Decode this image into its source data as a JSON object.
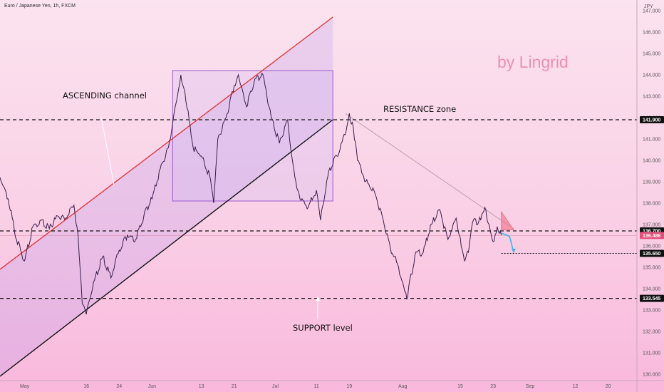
{
  "header": {
    "title": "Euro / Japanese Yen, 1h, FXCM"
  },
  "brand": {
    "text": "by Lingrid"
  },
  "annotations": {
    "ascending": "ASCENDING channel",
    "resistance": "RESISTANCE zone",
    "support": "SUPPORT level"
  },
  "chart_data": {
    "type": "line",
    "title": "Euro / Japanese Yen, 1h, FXCM",
    "ylabel": "JPY",
    "xlabel": "",
    "ylim": [
      129.7,
      147.5
    ],
    "xlim": [
      "2022-04-25",
      "2022-09-27"
    ],
    "x_ticks": [
      {
        "label": "May",
        "x": "2022-05-01"
      },
      {
        "label": "16",
        "x": "2022-05-16"
      },
      {
        "label": "24",
        "x": "2022-05-24"
      },
      {
        "label": "Jun",
        "x": "2022-06-01"
      },
      {
        "label": "13",
        "x": "2022-06-13"
      },
      {
        "label": "21",
        "x": "2022-06-21"
      },
      {
        "label": "Jul",
        "x": "2022-07-01"
      },
      {
        "label": "11",
        "x": "2022-07-11"
      },
      {
        "label": "19",
        "x": "2022-07-19"
      },
      {
        "label": "Aug",
        "x": "2022-08-01"
      },
      {
        "label": "15",
        "x": "2022-08-15"
      },
      {
        "label": "23",
        "x": "2022-08-23"
      },
      {
        "label": "Sep",
        "x": "2022-09-01"
      },
      {
        "label": "12",
        "x": "2022-09-12"
      },
      {
        "label": "20",
        "x": "2022-09-20"
      }
    ],
    "y_ticks": [
      130.0,
      131.0,
      132.0,
      133.0,
      134.0,
      135.0,
      136.0,
      137.0,
      138.0,
      139.0,
      140.0,
      141.0,
      142.0,
      143.0,
      144.0,
      145.0,
      146.0,
      147.0
    ],
    "series": [
      {
        "values": [
          [
            "2022-04-25",
            139.2
          ],
          [
            "2022-04-27",
            138.2
          ],
          [
            "2022-04-29",
            136.3
          ],
          [
            "2022-05-01",
            135.3
          ],
          [
            "2022-05-03",
            136.9
          ],
          [
            "2022-05-05",
            137.2
          ],
          [
            "2022-05-07",
            136.8
          ],
          [
            "2022-05-09",
            137.4
          ],
          [
            "2022-05-11",
            137.3
          ],
          [
            "2022-05-13",
            137.9
          ],
          [
            "2022-05-14",
            136.5
          ],
          [
            "2022-05-15",
            133.3
          ],
          [
            "2022-05-16",
            132.8
          ],
          [
            "2022-05-18",
            134.4
          ],
          [
            "2022-05-20",
            135.5
          ],
          [
            "2022-05-22",
            134.5
          ],
          [
            "2022-05-24",
            135.8
          ],
          [
            "2022-05-26",
            136.5
          ],
          [
            "2022-05-28",
            136.3
          ],
          [
            "2022-05-30",
            137.4
          ],
          [
            "2022-06-01",
            138.2
          ],
          [
            "2022-06-03",
            139.6
          ],
          [
            "2022-06-05",
            140.6
          ],
          [
            "2022-06-07",
            142.8
          ],
          [
            "2022-06-08",
            144.0
          ],
          [
            "2022-06-09",
            143.2
          ],
          [
            "2022-06-11",
            140.6
          ],
          [
            "2022-06-13",
            140.2
          ],
          [
            "2022-06-15",
            139.3
          ],
          [
            "2022-06-16",
            138.0
          ],
          [
            "2022-06-17",
            141.0
          ],
          [
            "2022-06-19",
            142.0
          ],
          [
            "2022-06-21",
            143.5
          ],
          [
            "2022-06-22",
            144.0
          ],
          [
            "2022-06-24",
            142.5
          ],
          [
            "2022-06-26",
            143.8
          ],
          [
            "2022-06-28",
            144.0
          ],
          [
            "2022-06-30",
            142.0
          ],
          [
            "2022-07-02",
            140.8
          ],
          [
            "2022-07-04",
            141.9
          ],
          [
            "2022-07-05",
            140.2
          ],
          [
            "2022-07-06",
            139.0
          ],
          [
            "2022-07-07",
            138.2
          ],
          [
            "2022-07-09",
            137.8
          ],
          [
            "2022-07-11",
            138.6
          ],
          [
            "2022-07-12",
            137.2
          ],
          [
            "2022-07-14",
            139.5
          ],
          [
            "2022-07-16",
            140.2
          ],
          [
            "2022-07-18",
            141.2
          ],
          [
            "2022-07-19",
            142.2
          ],
          [
            "2022-07-20",
            141.5
          ],
          [
            "2022-07-21",
            140.0
          ],
          [
            "2022-07-23",
            139.0
          ],
          [
            "2022-07-25",
            138.6
          ],
          [
            "2022-07-27",
            137.4
          ],
          [
            "2022-07-29",
            135.9
          ],
          [
            "2022-07-31",
            135.0
          ],
          [
            "2022-08-01",
            134.3
          ],
          [
            "2022-08-02",
            133.5
          ],
          [
            "2022-08-04",
            135.6
          ],
          [
            "2022-08-06",
            135.7
          ],
          [
            "2022-08-08",
            137.0
          ],
          [
            "2022-08-10",
            137.7
          ],
          [
            "2022-08-12",
            136.3
          ],
          [
            "2022-08-14",
            137.3
          ],
          [
            "2022-08-15",
            136.4
          ],
          [
            "2022-08-16",
            135.3
          ],
          [
            "2022-08-17",
            135.7
          ],
          [
            "2022-08-18",
            137.1
          ],
          [
            "2022-08-20",
            137.2
          ],
          [
            "2022-08-21",
            137.8
          ],
          [
            "2022-08-22",
            137.0
          ],
          [
            "2022-08-23",
            136.2
          ],
          [
            "2022-08-24",
            136.9
          ],
          [
            "2022-08-25",
            136.5
          ]
        ]
      }
    ],
    "levels": [
      {
        "label": "141.900",
        "y": 141.9,
        "style": "dashed",
        "badge": "dark"
      },
      {
        "label": "136.700",
        "y": 136.7,
        "style": "dashed",
        "badge": "dark"
      },
      {
        "label": "136.486",
        "y": 136.486,
        "style": "thin",
        "badge": "red"
      },
      {
        "label": "135.650",
        "y": 135.65,
        "style": "dotted",
        "badge": "dark"
      },
      {
        "label": "133.545",
        "y": 133.545,
        "style": "dashed",
        "badge": "dark"
      }
    ],
    "drawings": {
      "channel_top": [
        [
          "2022-04-25",
          134.9
        ],
        [
          "2022-07-15",
          146.7
        ]
      ],
      "channel_bottom": [
        [
          "2022-04-25",
          129.9
        ],
        [
          "2022-07-15",
          141.9
        ]
      ],
      "rectangle": {
        "x": [
          "2022-06-06",
          "2022-07-15"
        ],
        "y": [
          138.1,
          144.2
        ]
      },
      "trendline": [
        [
          "2022-07-18",
          142.2
        ],
        [
          "2022-08-28",
          136.8
        ]
      ],
      "triangle": [
        [
          "2022-08-25",
          137.6
        ],
        [
          "2022-08-28",
          136.75
        ],
        [
          "2022-08-25",
          136.75
        ]
      ],
      "projection": [
        [
          "2022-08-25",
          136.6
        ],
        [
          "2022-08-27",
          136.45
        ],
        [
          "2022-08-28",
          135.7
        ]
      ],
      "grid": false,
      "legend": "none",
      "colors": {
        "price": "#3a1d4a",
        "channel_top": "#e03030",
        "channel_bottom": "#111111",
        "rectangle": "#9b59d0",
        "trendline": "#b49aa8",
        "projection": "#3fb6e8",
        "triangle": "#f08aa0",
        "badge_dark": "#111111",
        "badge_red": "#e0507a"
      }
    }
  }
}
